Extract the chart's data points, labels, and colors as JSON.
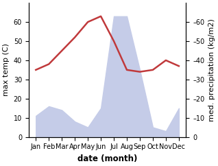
{
  "months": [
    "Jan",
    "Feb",
    "Mar",
    "Apr",
    "May",
    "Jun",
    "Jul",
    "Aug",
    "Sep",
    "Oct",
    "Nov",
    "Dec"
  ],
  "month_x": [
    1,
    2,
    3,
    4,
    5,
    6,
    7,
    8,
    9,
    10,
    11,
    12
  ],
  "temperature": [
    35,
    38,
    45,
    52,
    60,
    63,
    50,
    35,
    34,
    35,
    40,
    37
  ],
  "precipitation": [
    11,
    16,
    14,
    8,
    5,
    15,
    63,
    63,
    35,
    5,
    3,
    15
  ],
  "temp_color": "#c0393b",
  "precip_fill_color": "#c5cce8",
  "precip_edge_color": "#b0bcde",
  "ylabel_left": "max temp (C)",
  "ylabel_right": "med. precipitation (kg/m2)",
  "xlabel": "date (month)",
  "ylim_left": [
    0,
    70
  ],
  "ylim_right": [
    0,
    70
  ],
  "yticks_left": [
    0,
    10,
    20,
    30,
    40,
    50,
    60
  ],
  "yticks_right": [
    0,
    10,
    20,
    30,
    40,
    50,
    60
  ],
  "background_color": "#ffffff",
  "line_width": 1.8,
  "font_size_ylabel": 8,
  "font_size_xlabel": 8.5,
  "font_size_tick": 7
}
